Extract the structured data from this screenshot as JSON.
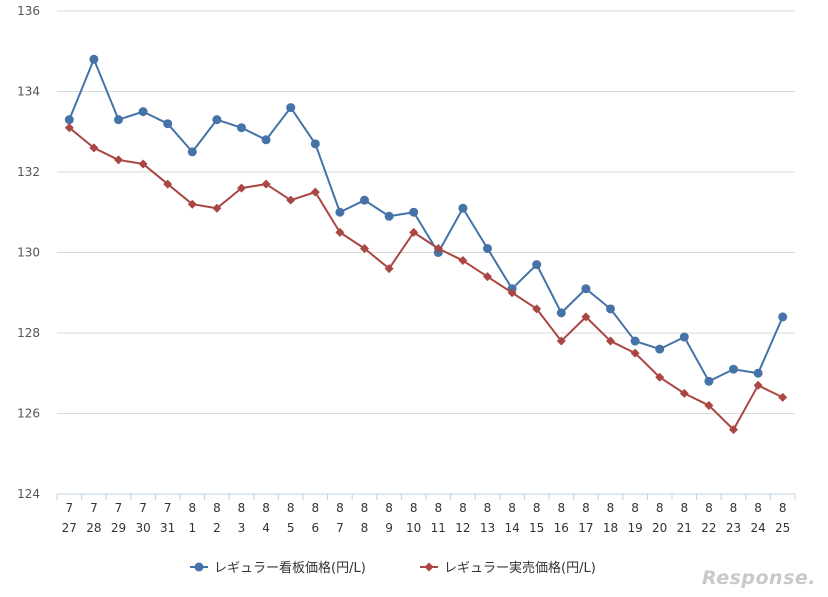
{
  "chart_data": {
    "type": "line",
    "title": "",
    "xlabel": "",
    "ylabel": "",
    "ylim": [
      124,
      136
    ],
    "yticks": [
      124,
      126,
      128,
      130,
      132,
      134,
      136
    ],
    "grid": true,
    "legend_position": "bottom-center",
    "x_months": [
      "7",
      "7",
      "7",
      "7",
      "7",
      "8",
      "8",
      "8",
      "8",
      "8",
      "8",
      "8",
      "8",
      "8",
      "8",
      "8",
      "8",
      "8",
      "8",
      "8",
      "8",
      "8",
      "8",
      "8",
      "8",
      "8",
      "8",
      "8",
      "8",
      "8"
    ],
    "x_days": [
      "27",
      "28",
      "29",
      "30",
      "31",
      "1",
      "2",
      "3",
      "4",
      "5",
      "6",
      "7",
      "8",
      "9",
      "10",
      "11",
      "12",
      "13",
      "14",
      "15",
      "16",
      "17",
      "18",
      "19",
      "20",
      "21",
      "22",
      "23",
      "24",
      "25"
    ],
    "series": [
      {
        "name": "レギュラー看板価格(円/L)",
        "color": "#4572a7",
        "marker": "circle",
        "values": [
          133.3,
          134.8,
          133.3,
          133.5,
          133.2,
          132.5,
          133.3,
          133.1,
          132.8,
          133.6,
          132.7,
          131.0,
          131.3,
          130.9,
          131.0,
          130.0,
          131.1,
          130.1,
          129.1,
          129.7,
          128.5,
          129.1,
          128.6,
          127.8,
          127.6,
          127.9,
          126.8,
          127.1,
          127.0,
          128.4
        ]
      },
      {
        "name": "レギュラー実売価格(円/L)",
        "color": "#aa4643",
        "marker": "diamond",
        "values": [
          133.1,
          132.6,
          132.3,
          132.2,
          131.7,
          131.2,
          131.1,
          131.6,
          131.7,
          131.3,
          131.5,
          130.5,
          130.1,
          129.6,
          130.5,
          130.1,
          129.8,
          129.4,
          129.0,
          128.6,
          127.8,
          128.4,
          127.8,
          127.5,
          126.9,
          126.5,
          126.2,
          125.6,
          126.7,
          126.4
        ]
      }
    ]
  },
  "watermark": {
    "text": "Response."
  }
}
